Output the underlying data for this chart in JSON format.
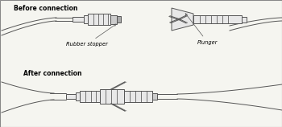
{
  "title_before": "Before connection",
  "title_after": "After connection",
  "label_rubber": "Rubber stopper",
  "label_plunger": "Plunger",
  "line_color": "#555555",
  "fill_light": "#e8e8e8",
  "fill_mid": "#cccccc",
  "fill_dark": "#aaaaaa",
  "text_color": "#000000",
  "lw": 0.7,
  "lw_thick": 1.0,
  "border_color": "#888888"
}
